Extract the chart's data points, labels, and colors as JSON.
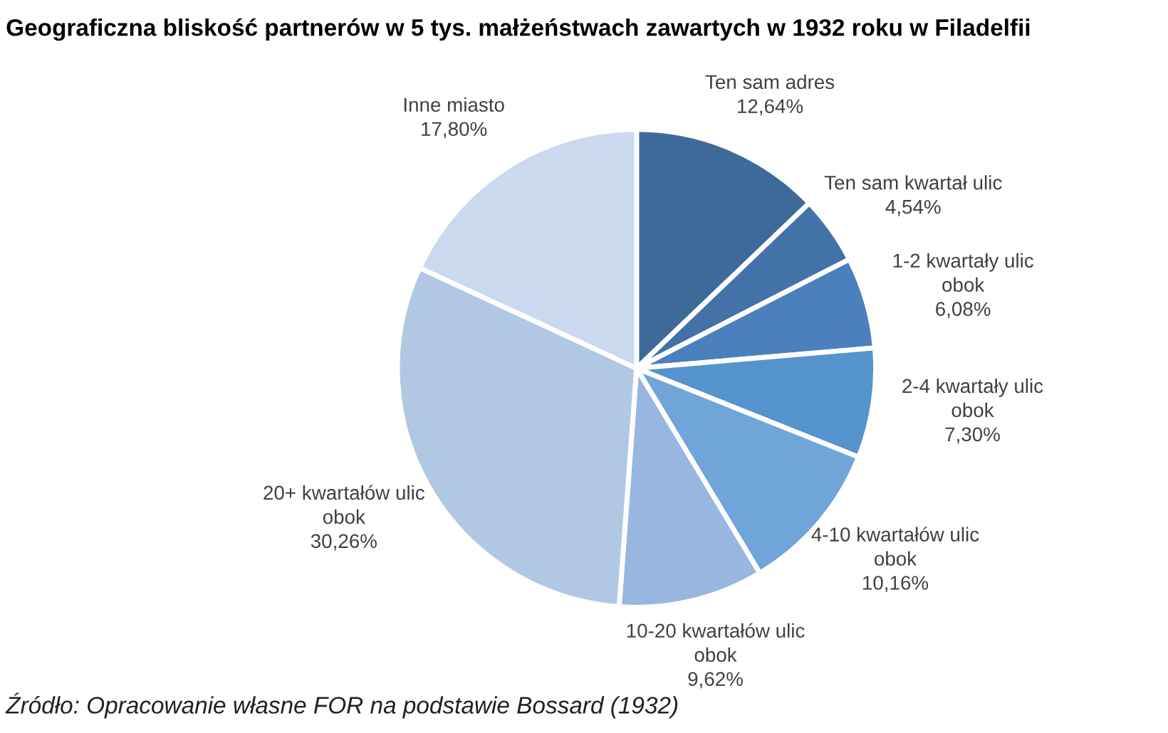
{
  "chart_data": {
    "type": "pie",
    "title": "Geograficzna bliskość partnerów w 5 tys. małżeństwach zawartych w 1932 roku w Filadelfii",
    "categories": [
      "Ten sam adres",
      "Ten sam kwartał ulic",
      "1-2 kwartały ulic\nobok",
      "2-4 kwartały ulic\nobok",
      "4-10 kwartałów ulic\nobok",
      "10-20 kwartałów ulic\nobok",
      "20+ kwartałów ulic\nobok",
      "Inne miasto"
    ],
    "values": [
      12.64,
      4.54,
      6.08,
      7.3,
      10.16,
      9.62,
      30.26,
      17.8
    ],
    "colors": [
      "#3d6a99",
      "#4372a8",
      "#4a80bd",
      "#5593cd",
      "#70a5d9",
      "#97b7e0",
      "#b1c8e4",
      "#cad9ef"
    ],
    "value_labels": [
      "12,64%",
      "4,54%",
      "6,08%",
      "7,30%",
      "10,16%",
      "9,62%",
      "30,26%",
      "17,80%"
    ],
    "legend": false,
    "annotations": [
      "Źródło: Opracowanie własne FOR na podstawie Bossard (1932)"
    ]
  }
}
